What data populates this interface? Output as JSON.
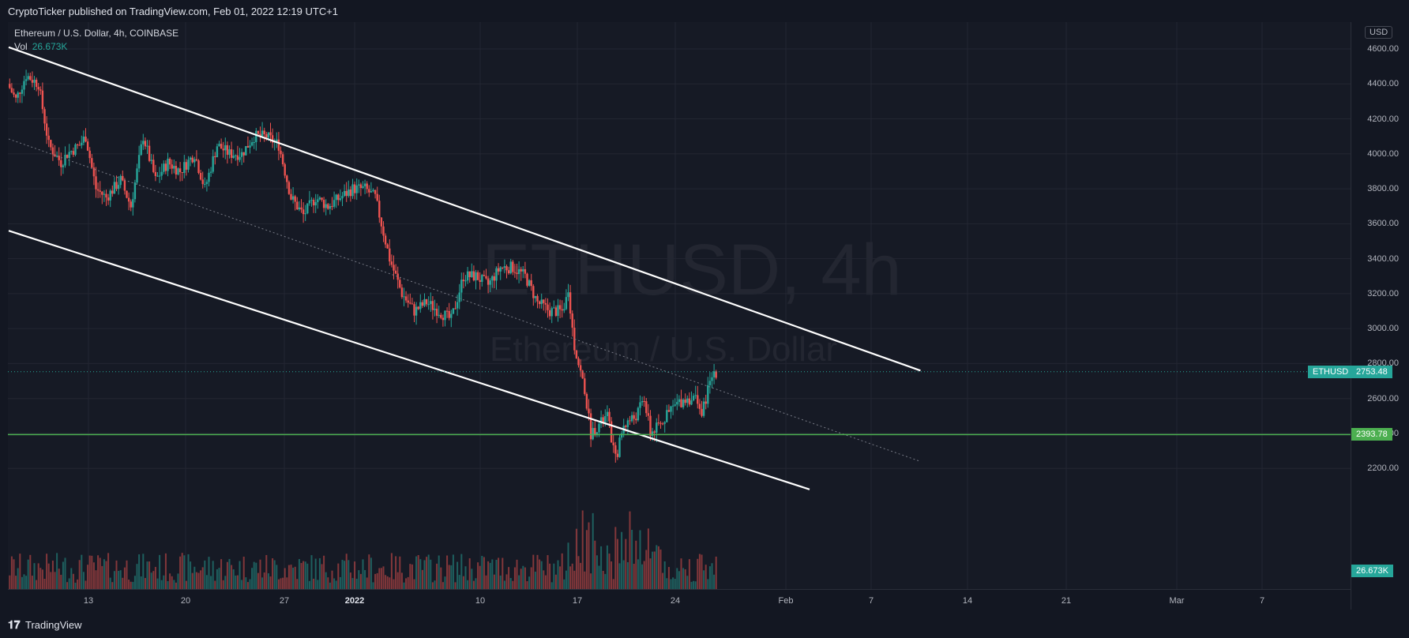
{
  "header": {
    "published": "CryptoTicker published on TradingView.com, Feb 01, 2022 12:19 UTC+1"
  },
  "legend": {
    "symbol_line": "Ethereum / U.S. Dollar, 4h, COINBASE",
    "vol_label": "Vol",
    "vol_value": "26.673K"
  },
  "watermark": {
    "ticker": "ETHUSD, 4h",
    "name": "Ethereum / U.S. Dollar"
  },
  "price_axis": {
    "currency": "USD",
    "ticks": [
      "4600.00",
      "4400.00",
      "4200.00",
      "4000.00",
      "3800.00",
      "3600.00",
      "3400.00",
      "3200.00",
      "3000.00",
      "2800.00",
      "2600.00",
      "2400.00",
      "2200.00"
    ]
  },
  "time_axis": {
    "ticks": [
      {
        "label": "13",
        "bold": false
      },
      {
        "label": "20",
        "bold": false
      },
      {
        "label": "27",
        "bold": false
      },
      {
        "label": "2022",
        "bold": true
      },
      {
        "label": "10",
        "bold": false
      },
      {
        "label": "17",
        "bold": false
      },
      {
        "label": "24",
        "bold": false
      },
      {
        "label": "Feb",
        "bold": false
      },
      {
        "label": "7",
        "bold": false
      },
      {
        "label": "14",
        "bold": false
      },
      {
        "label": "21",
        "bold": false
      },
      {
        "label": "Mar",
        "bold": false
      },
      {
        "label": "7",
        "bold": false
      }
    ]
  },
  "tags": {
    "symbol": "ETHUSD",
    "last_price": "2753.48",
    "horizontal_level": "2393.78",
    "volume": "26.673K"
  },
  "colors": {
    "up": "#26a69a",
    "down": "#ef5350",
    "level": "#4caf50",
    "channel": "#ffffff",
    "background": "#161a25"
  },
  "chart_data": {
    "type": "candlestick",
    "ylim": [
      2100,
      4700
    ],
    "anchors": [
      [
        "2021-12-06T00:00",
        4400
      ],
      [
        "2021-12-06T16:00",
        4310
      ],
      [
        "2021-12-07T12:00",
        4450
      ],
      [
        "2021-12-08T12:00",
        4400
      ],
      [
        "2021-12-09T08:00",
        4050
      ],
      [
        "2021-12-10T08:00",
        3950
      ],
      [
        "2021-12-10T20:00",
        4000
      ],
      [
        "2021-12-11T20:00",
        4050
      ],
      [
        "2021-12-12T08:00",
        4100
      ],
      [
        "2021-12-13T04:00",
        3800
      ],
      [
        "2021-12-14T00:00",
        3750
      ],
      [
        "2021-12-15T04:00",
        3850
      ],
      [
        "2021-12-16T00:00",
        3700
      ],
      [
        "2021-12-17T00:00",
        4100
      ],
      [
        "2021-12-18T00:00",
        3850
      ],
      [
        "2021-12-19T00:00",
        3950
      ],
      [
        "2021-12-20T00:00",
        3900
      ],
      [
        "2021-12-21T04:00",
        4000
      ],
      [
        "2021-12-22T00:00",
        3800
      ],
      [
        "2021-12-23T00:00",
        4050
      ],
      [
        "2021-12-24T00:00",
        4000
      ],
      [
        "2021-12-25T00:00",
        4000
      ],
      [
        "2021-12-26T00:00",
        4100
      ],
      [
        "2021-12-27T00:00",
        4100
      ],
      [
        "2021-12-28T00:00",
        4050
      ],
      [
        "2021-12-28T12:00",
        3900
      ],
      [
        "2021-12-29T00:00",
        3750
      ],
      [
        "2021-12-30T00:00",
        3650
      ],
      [
        "2021-12-31T00:00",
        3750
      ],
      [
        "2022-01-01T00:00",
        3700
      ],
      [
        "2022-01-02T00:00",
        3750
      ],
      [
        "2022-01-03T00:00",
        3800
      ],
      [
        "2022-01-04T00:00",
        3800
      ],
      [
        "2022-01-04T20:00",
        3750
      ],
      [
        "2022-01-05T12:00",
        3550
      ],
      [
        "2022-01-06T00:00",
        3400
      ],
      [
        "2022-01-07T00:00",
        3200
      ],
      [
        "2022-01-08T00:00",
        3100
      ],
      [
        "2022-01-09T00:00",
        3150
      ],
      [
        "2022-01-10T00:00",
        3100
      ],
      [
        "2022-01-11T00:00",
        3050
      ],
      [
        "2022-01-12T00:00",
        3300
      ],
      [
        "2022-01-13T00:00",
        3300
      ],
      [
        "2022-01-14T00:00",
        3250
      ],
      [
        "2022-01-15T00:00",
        3350
      ],
      [
        "2022-01-16T00:00",
        3350
      ],
      [
        "2022-01-17T00:00",
        3300
      ],
      [
        "2022-01-18T00:00",
        3150
      ],
      [
        "2022-01-19T00:00",
        3100
      ],
      [
        "2022-01-20T00:00",
        3100
      ],
      [
        "2022-01-20T12:00",
        3200
      ],
      [
        "2022-01-21T00:00",
        2900
      ],
      [
        "2022-01-21T20:00",
        2650
      ],
      [
        "2022-01-22T08:00",
        2400
      ],
      [
        "2022-01-23T00:00",
        2450
      ],
      [
        "2022-01-23T16:00",
        2500
      ],
      [
        "2022-01-24T08:00",
        2250
      ],
      [
        "2022-01-25T00:00",
        2450
      ],
      [
        "2022-01-26T00:00",
        2500
      ],
      [
        "2022-01-26T16:00",
        2600
      ],
      [
        "2022-01-27T04:00",
        2400
      ],
      [
        "2022-01-28T00:00",
        2450
      ],
      [
        "2022-01-28T12:00",
        2500
      ],
      [
        "2022-01-29T00:00",
        2550
      ],
      [
        "2022-01-30T00:00",
        2600
      ],
      [
        "2022-01-31T00:00",
        2600
      ],
      [
        "2022-01-31T08:00",
        2500
      ],
      [
        "2022-01-31T20:00",
        2650
      ],
      [
        "2022-02-01T04:00",
        2720
      ],
      [
        "2022-02-01T08:00",
        2753.48
      ]
    ],
    "channel_upper": [
      [
        "2021-12-06T00:00",
        4610
      ],
      [
        "2022-02-18T00:00",
        2760
      ]
    ],
    "channel_lower": [
      [
        "2021-12-06T00:00",
        3560
      ],
      [
        "2022-02-09T00:00",
        2080
      ]
    ],
    "channel_mid": [
      [
        "2021-12-06T00:00",
        4085
      ],
      [
        "2022-02-18T00:00",
        2240
      ]
    ],
    "horizontal_level": 2393.78,
    "last_price": 2753.48
  }
}
